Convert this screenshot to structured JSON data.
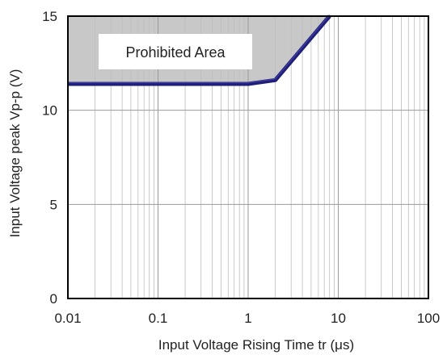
{
  "chart_data": {
    "type": "line",
    "title": "",
    "xlabel": "Input Voltage Rising Time tr (μs)",
    "ylabel": "Input Voltage peak Vp-p (V)",
    "x_scale": "log",
    "xlim": [
      0.01,
      100
    ],
    "ylim": [
      0,
      15
    ],
    "x_ticks": [
      "0.01",
      "0.1",
      "1",
      "10",
      "100"
    ],
    "y_ticks": [
      "0",
      "5",
      "10",
      "15"
    ],
    "grid": true,
    "series": [
      {
        "x": [
          0.01,
          1,
          2,
          8
        ],
        "y": [
          11.4,
          11.4,
          11.6,
          15
        ],
        "color": "#1f1f7a"
      }
    ],
    "shaded_region": {
      "label": "Prohibited Area",
      "fill": "#c8c8c8",
      "boundary": "above series"
    }
  }
}
